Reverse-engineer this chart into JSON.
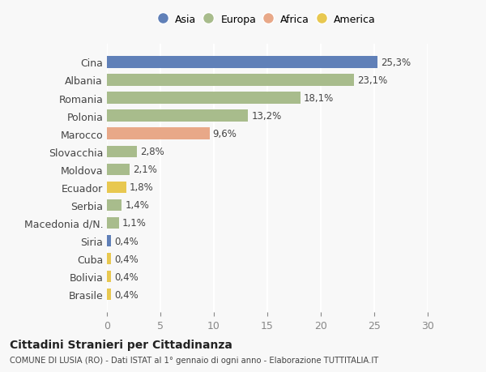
{
  "countries": [
    "Cina",
    "Albania",
    "Romania",
    "Polonia",
    "Marocco",
    "Slovacchia",
    "Moldova",
    "Ecuador",
    "Serbia",
    "Macedonia d/N.",
    "Siria",
    "Cuba",
    "Bolivia",
    "Brasile"
  ],
  "values": [
    25.3,
    23.1,
    18.1,
    13.2,
    9.6,
    2.8,
    2.1,
    1.8,
    1.4,
    1.1,
    0.4,
    0.4,
    0.4,
    0.4
  ],
  "labels": [
    "25,3%",
    "23,1%",
    "18,1%",
    "13,2%",
    "9,6%",
    "2,8%",
    "2,1%",
    "1,8%",
    "1,4%",
    "1,1%",
    "0,4%",
    "0,4%",
    "0,4%",
    "0,4%"
  ],
  "continents": [
    "Asia",
    "Europa",
    "Europa",
    "Europa",
    "Africa",
    "Europa",
    "Europa",
    "America",
    "Europa",
    "Europa",
    "Asia",
    "America",
    "America",
    "America"
  ],
  "continent_colors": {
    "Asia": "#6080b8",
    "Europa": "#a8bc8c",
    "Africa": "#e8a888",
    "America": "#e8c850"
  },
  "legend_order": [
    "Asia",
    "Europa",
    "Africa",
    "America"
  ],
  "bg_color": "#f8f8f8",
  "grid_color": "#ffffff",
  "title": "Cittadini Stranieri per Cittadinanza",
  "subtitle": "COMUNE DI LUSIA (RO) - Dati ISTAT al 1° gennaio di ogni anno - Elaborazione TUTTITALIA.IT",
  "xlim": [
    0,
    30
  ],
  "xticks": [
    0,
    5,
    10,
    15,
    20,
    25,
    30
  ]
}
